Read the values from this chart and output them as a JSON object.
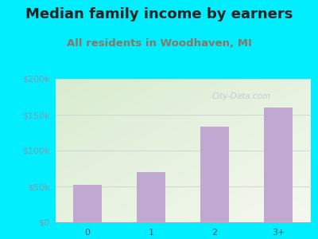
{
  "title": "Median family income by earners",
  "subtitle": "All residents in Woodhaven, MI",
  "categories": [
    "0",
    "1",
    "2",
    "3+"
  ],
  "values": [
    52000,
    70000,
    133000,
    160000
  ],
  "bar_color": "#c0a8d0",
  "title_color": "#222222",
  "subtitle_color": "#887766",
  "background_outer": "#00eeff",
  "background_inner_topleft": "#d8ecd0",
  "background_inner_bottomright": "#f5f8f0",
  "ytick_color": "#8899aa",
  "xtick_color": "#555555",
  "ylim": [
    0,
    200000
  ],
  "yticks": [
    0,
    50000,
    100000,
    150000,
    200000
  ],
  "ytick_labels": [
    "$0",
    "$50k",
    "$100k",
    "$150k",
    "$200k"
  ],
  "watermark": "City-Data.com",
  "title_fontsize": 13,
  "subtitle_fontsize": 9.5,
  "tick_fontsize": 8
}
